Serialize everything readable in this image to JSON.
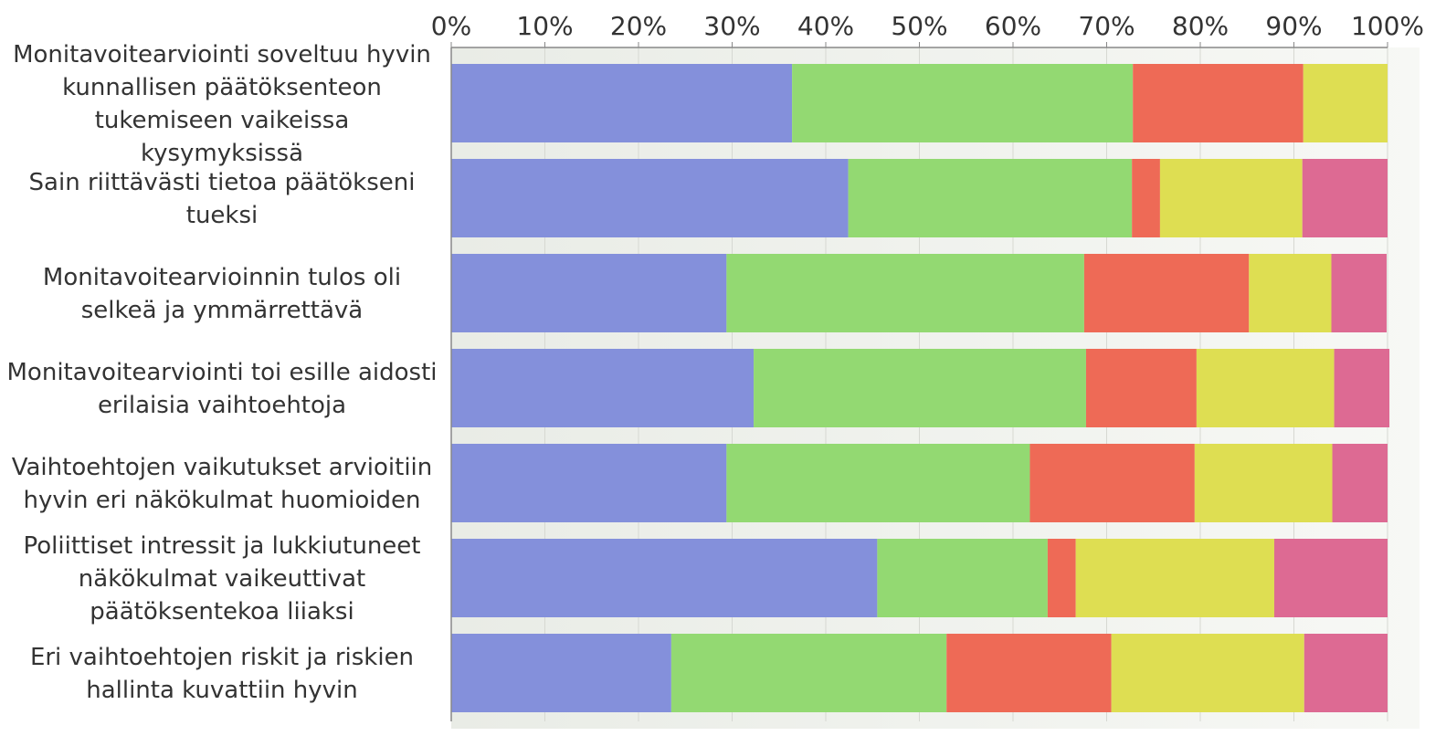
{
  "chart_data": {
    "type": "bar",
    "orientation": "horizontal",
    "stacked": true,
    "normalized_percent": true,
    "xlim": [
      0,
      100
    ],
    "x_ticks": [
      "0%",
      "10%",
      "20%",
      "30%",
      "40%",
      "50%",
      "60%",
      "70%",
      "80%",
      "90%",
      "100%"
    ],
    "grid": true,
    "legend": "none",
    "categories": [
      [
        "Monitavoitearviointi soveltuu hyvin",
        "kunnallisen päätöksenteon",
        "tukemiseen vaikeissa",
        "kysymyksissä"
      ],
      [
        "Sain riittävästi tietoa päätökseni",
        "tueksi"
      ],
      [
        "Monitavoitearvioinnin tulos oli",
        "selkeä ja ymmärrettävä"
      ],
      [
        "Monitavoitearviointi toi esille aidosti",
        "erilaisia vaihtoehtoja"
      ],
      [
        "Vaihtoehtojen vaikutukset arvioitiin",
        "hyvin eri näkökulmat huomioiden"
      ],
      [
        "Poliittiset intressit ja lukkiutuneet",
        "näkökulmat vaikeuttivat",
        "päätöksentekoa liiaksi"
      ],
      [
        "Eri vaihtoehtojen riskit ja riskien",
        "hallinta kuvattiin hyvin"
      ]
    ],
    "series": [
      {
        "color": "#8490db",
        "values": [
          36.4,
          42.4,
          29.4,
          32.3,
          29.4,
          45.5,
          23.5
        ]
      },
      {
        "color": "#93d972",
        "values": [
          36.4,
          30.3,
          38.2,
          35.5,
          32.4,
          18.2,
          29.4
        ]
      },
      {
        "color": "#ee6a56",
        "values": [
          18.2,
          3.0,
          17.6,
          11.8,
          17.6,
          3.0,
          17.6
        ]
      },
      {
        "color": "#dede52",
        "values": [
          9.0,
          15.2,
          8.8,
          14.7,
          14.7,
          21.2,
          20.6
        ]
      },
      {
        "color": "#dd6a93",
        "values": [
          0.0,
          9.1,
          5.9,
          5.9,
          5.9,
          12.1,
          8.9
        ]
      }
    ]
  }
}
